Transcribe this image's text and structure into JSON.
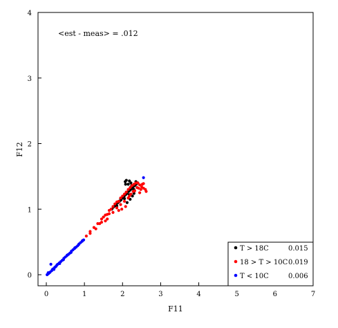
{
  "chart_data": {
    "type": "scatter",
    "title": "",
    "xlabel": "F11",
    "ylabel": "F12",
    "xlim": [
      0,
      7
    ],
    "ylim": [
      0,
      4
    ],
    "x_ticks": [
      "0",
      "1",
      "2",
      "3",
      "4",
      "5",
      "6",
      "7"
    ],
    "y_ticks": [
      "0",
      "1",
      "2",
      "3",
      "4"
    ],
    "annotation": "<est - meas> = .012",
    "grid": false,
    "legend_position": "bottom-right",
    "series": [
      {
        "name": "T > 18C",
        "value": "0.015",
        "color": "#000000",
        "points": [
          [
            1.72,
            1.0
          ],
          [
            1.76,
            1.03
          ],
          [
            1.8,
            1.05
          ],
          [
            1.84,
            1.07
          ],
          [
            1.88,
            1.1
          ],
          [
            1.92,
            1.12
          ],
          [
            1.96,
            1.14
          ],
          [
            2.0,
            1.17
          ],
          [
            2.04,
            1.19
          ],
          [
            2.08,
            1.22
          ],
          [
            2.12,
            1.24
          ],
          [
            2.16,
            1.27
          ],
          [
            2.2,
            1.29
          ],
          [
            2.24,
            1.31
          ],
          [
            2.28,
            1.34
          ],
          [
            2.32,
            1.36
          ],
          [
            2.36,
            1.38
          ],
          [
            2.4,
            1.4
          ],
          [
            1.85,
            1.05
          ],
          [
            1.95,
            1.16
          ],
          [
            2.05,
            1.16
          ],
          [
            2.1,
            1.26
          ],
          [
            2.18,
            1.22
          ],
          [
            2.25,
            1.36
          ],
          [
            2.3,
            1.3
          ],
          [
            2.35,
            1.42
          ],
          [
            2.12,
            1.1
          ],
          [
            2.2,
            1.15
          ],
          [
            2.26,
            1.2
          ],
          [
            2.3,
            1.24
          ],
          [
            2.07,
            1.42
          ],
          [
            2.1,
            1.44
          ],
          [
            2.15,
            1.38
          ],
          [
            2.18,
            1.43
          ],
          [
            2.22,
            1.4
          ],
          [
            2.24,
            1.36
          ],
          [
            2.08,
            1.38
          ]
        ]
      },
      {
        "name": "18 > T > 10C",
        "value": "0.019",
        "color": "#ff0000",
        "points": [
          [
            0.85,
            0.46
          ],
          [
            0.95,
            0.52
          ],
          [
            1.05,
            0.59
          ],
          [
            1.15,
            0.66
          ],
          [
            1.25,
            0.72
          ],
          [
            1.35,
            0.78
          ],
          [
            1.45,
            0.85
          ],
          [
            1.55,
            0.91
          ],
          [
            1.65,
            0.98
          ],
          [
            1.75,
            1.04
          ],
          [
            1.85,
            1.11
          ],
          [
            1.95,
            1.17
          ],
          [
            2.05,
            1.23
          ],
          [
            2.15,
            1.3
          ],
          [
            2.25,
            1.36
          ],
          [
            2.35,
            1.4
          ],
          [
            2.45,
            1.37
          ],
          [
            2.5,
            1.34
          ],
          [
            2.55,
            1.39
          ],
          [
            1.4,
            0.78
          ],
          [
            1.5,
            0.88
          ],
          [
            1.6,
            0.92
          ],
          [
            1.7,
            1.0
          ],
          [
            1.8,
            1.08
          ],
          [
            1.9,
            1.12
          ],
          [
            2.0,
            1.2
          ],
          [
            2.1,
            1.26
          ],
          [
            2.2,
            1.33
          ],
          [
            2.3,
            1.38
          ],
          [
            2.4,
            1.4
          ],
          [
            1.95,
            1.07
          ],
          [
            2.05,
            1.12
          ],
          [
            2.15,
            1.17
          ],
          [
            2.22,
            1.23
          ],
          [
            2.32,
            1.28
          ],
          [
            2.42,
            1.32
          ],
          [
            2.48,
            1.3
          ],
          [
            2.6,
            1.3
          ],
          [
            2.62,
            1.27
          ],
          [
            1.9,
            0.98
          ],
          [
            1.98,
            1.0
          ],
          [
            2.08,
            1.04
          ],
          [
            1.75,
            0.95
          ],
          [
            1.85,
            1.02
          ],
          [
            1.55,
            0.82
          ],
          [
            1.6,
            0.85
          ],
          [
            1.15,
            0.63
          ],
          [
            1.3,
            0.7
          ],
          [
            1.45,
            0.8
          ],
          [
            1.65,
            0.93
          ],
          [
            2.18,
            1.2
          ],
          [
            2.28,
            1.27
          ],
          [
            2.38,
            1.33
          ],
          [
            2.52,
            1.38
          ],
          [
            2.45,
            1.25
          ],
          [
            2.55,
            1.32
          ]
        ]
      },
      {
        "name": "T < 10C",
        "value": "0.006",
        "color": "#0000ff",
        "points": [
          [
            0.02,
            0.0
          ],
          [
            0.04,
            0.01
          ],
          [
            0.06,
            0.02
          ],
          [
            0.08,
            0.03
          ],
          [
            0.1,
            0.04
          ],
          [
            0.14,
            0.06
          ],
          [
            0.18,
            0.09
          ],
          [
            0.22,
            0.11
          ],
          [
            0.26,
            0.13
          ],
          [
            0.3,
            0.16
          ],
          [
            0.34,
            0.18
          ],
          [
            0.38,
            0.2
          ],
          [
            0.42,
            0.22
          ],
          [
            0.46,
            0.25
          ],
          [
            0.5,
            0.27
          ],
          [
            0.54,
            0.29
          ],
          [
            0.58,
            0.31
          ],
          [
            0.62,
            0.33
          ],
          [
            0.66,
            0.36
          ],
          [
            0.7,
            0.38
          ],
          [
            0.74,
            0.4
          ],
          [
            0.78,
            0.42
          ],
          [
            0.82,
            0.44
          ],
          [
            0.86,
            0.47
          ],
          [
            0.9,
            0.49
          ],
          [
            0.94,
            0.51
          ],
          [
            0.98,
            0.53
          ],
          [
            0.12,
            0.16
          ],
          [
            0.05,
            0.03
          ],
          [
            0.2,
            0.08
          ],
          [
            0.28,
            0.15
          ],
          [
            0.35,
            0.17
          ],
          [
            0.45,
            0.23
          ],
          [
            0.55,
            0.3
          ],
          [
            0.65,
            0.34
          ],
          [
            0.75,
            0.41
          ],
          [
            0.85,
            0.46
          ],
          [
            0.95,
            0.52
          ],
          [
            0.16,
            0.08
          ],
          [
            0.24,
            0.12
          ],
          [
            2.55,
            1.48
          ]
        ]
      }
    ]
  }
}
